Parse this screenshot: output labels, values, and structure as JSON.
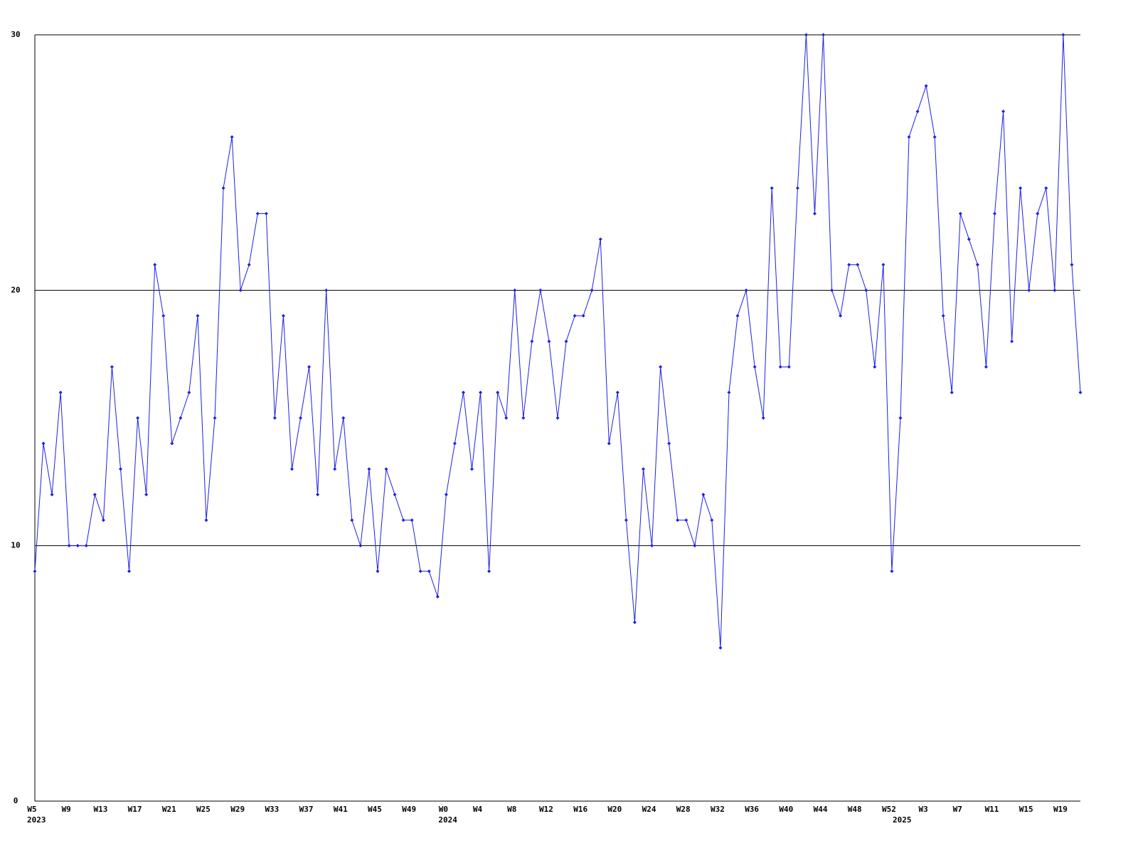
{
  "chart_data": {
    "type": "line",
    "categories": [
      "W5",
      null,
      null,
      null,
      "W9",
      null,
      null,
      null,
      "W13",
      null,
      null,
      null,
      "W17",
      null,
      null,
      null,
      "W21",
      null,
      null,
      null,
      "W25",
      null,
      null,
      null,
      "W29",
      null,
      null,
      null,
      "W33",
      null,
      null,
      null,
      "W37",
      null,
      null,
      null,
      "W41",
      null,
      null,
      null,
      "W45",
      null,
      null,
      null,
      "W49",
      null,
      null,
      null,
      "W0",
      null,
      null,
      null,
      "W4",
      null,
      null,
      null,
      "W8",
      null,
      null,
      null,
      "W12",
      null,
      null,
      null,
      "W16",
      null,
      null,
      null,
      "W20",
      null,
      null,
      null,
      "W24",
      null,
      null,
      null,
      "W28",
      null,
      null,
      null,
      "W32",
      null,
      null,
      null,
      "W36",
      null,
      null,
      null,
      "W40",
      null,
      null,
      null,
      "W44",
      null,
      null,
      null,
      "W48",
      null,
      null,
      null,
      "W52",
      null,
      null,
      null,
      "W3",
      null,
      null,
      null,
      "W7",
      null,
      null,
      null,
      "W11",
      null,
      null,
      null,
      "W15",
      null,
      null,
      null,
      "W19",
      null,
      null
    ],
    "year_labels": [
      {
        "label": "2023",
        "index": 0
      },
      {
        "label": "2024",
        "index": 48
      },
      {
        "label": "2025",
        "index": 101
      }
    ],
    "series": [
      {
        "color": "#1f1fe6",
        "values": [
          9,
          14,
          12,
          16,
          10,
          10,
          10,
          12,
          11,
          17,
          13,
          9,
          15,
          12,
          21,
          19,
          14,
          15,
          16,
          19,
          11,
          15,
          24,
          26,
          20,
          21,
          23,
          23,
          15,
          19,
          13,
          15,
          17,
          12,
          20,
          13,
          15,
          11,
          10,
          13,
          9,
          13,
          12,
          11,
          11,
          9,
          9,
          8,
          12,
          14,
          16,
          13,
          16,
          9,
          16,
          15,
          20,
          15,
          18,
          20,
          18,
          15,
          18,
          19,
          19,
          20,
          22,
          14,
          16,
          11,
          7,
          13,
          10,
          17,
          14,
          11,
          11,
          10,
          12,
          11,
          6,
          16,
          19,
          20,
          17,
          15,
          24,
          17,
          17,
          24,
          30,
          23,
          30,
          20,
          19,
          21,
          21,
          20,
          17,
          21,
          9,
          15,
          26,
          27,
          28,
          26,
          19,
          16,
          23,
          22,
          21,
          17,
          23,
          27,
          18,
          24,
          20,
          23,
          24,
          20,
          30,
          21,
          16
        ]
      }
    ],
    "ylim": [
      0,
      30
    ],
    "yticks": [
      0,
      10,
      20,
      30
    ],
    "grid": true
  }
}
